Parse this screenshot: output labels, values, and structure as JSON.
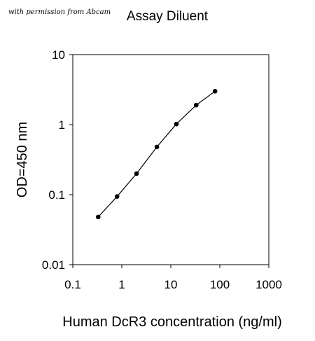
{
  "credit": "with permission from Abcam",
  "chart_data": {
    "type": "line",
    "title": "Assay Diluent",
    "xlabel": "Human DcR3 concentration (ng/ml)",
    "ylabel": "OD=450 nm",
    "xscale": "log",
    "yscale": "log",
    "xlim": [
      0.1,
      1000
    ],
    "ylim": [
      0.01,
      10
    ],
    "xticks": [
      "0.1",
      "1",
      "10",
      "100",
      "1000"
    ],
    "yticks": [
      "0.01",
      "0.1",
      "1",
      "10"
    ],
    "grid": false,
    "legend": "none",
    "series": [
      {
        "x": [
          0.33,
          0.8,
          2.0,
          5.2,
          13.0,
          33.0,
          80.0
        ],
        "y": [
          0.048,
          0.094,
          0.2,
          0.48,
          1.02,
          1.9,
          3.0
        ]
      }
    ],
    "colors": {
      "line": "#000000",
      "marker": "#000000",
      "frame": "#000000"
    }
  }
}
